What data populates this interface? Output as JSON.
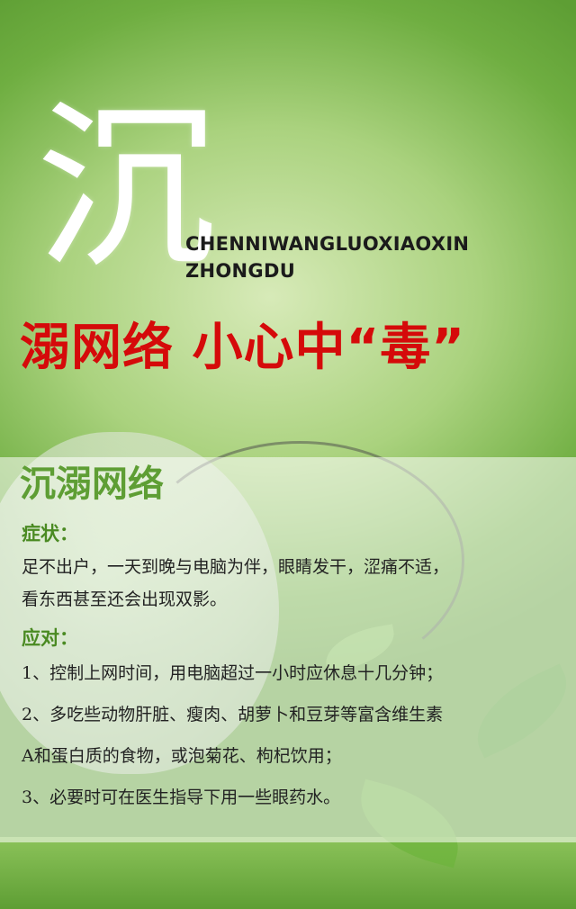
{
  "header": {
    "logo_char": "沉",
    "pinyin_line1": "CHENNIWANGLUOXIAOXIN",
    "pinyin_line2": "ZHONGDU",
    "slogan": "溺网络  小心中“毒”"
  },
  "colors": {
    "green": "#5e9e34",
    "red": "#d50a0a"
  },
  "panel": {
    "title": "沉溺网络",
    "symptoms_heading": "症状：",
    "symptoms_line1": "足不出户，一天到晚与电脑为伴，眼睛发干，涩痛不适，",
    "symptoms_line2": "看东西甚至还会出现双影。",
    "response_heading": "应对：",
    "item1": "1、控制上网时间，用电脑超过一小时应休息十几分钟；",
    "item2_line1": "2、多吃些动物肝脏、瘦肉、胡萝卜和豆芽等富含维生素",
    "item2_line2": "A和蛋白质的食物，或泡菊花、枸杞饮用；",
    "item3": "3、必要时可在医生指导下用一些眼药水。"
  }
}
